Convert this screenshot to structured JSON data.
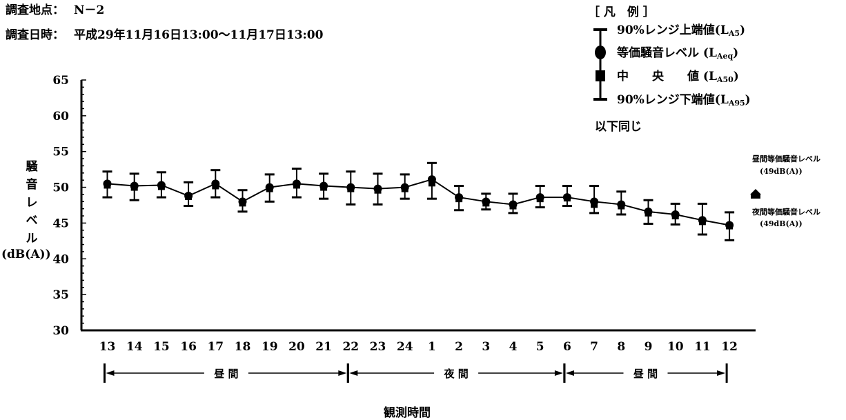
{
  "header": {
    "location_label": "調査地点：",
    "location_value": "N－2",
    "datetime_label": "調査日時：",
    "datetime_value": "平成29年11月16日13:00～11月17日13:00"
  },
  "legend": {
    "title": "［ 凡　例 ］",
    "items": [
      {
        "symbol": "cap",
        "label": "90%レンジ上端値(L",
        "sub": "A5",
        "tail": ")"
      },
      {
        "symbol": "circle",
        "label": "等価騒音レベル (L",
        "sub": "Aeq",
        "tail": ")"
      },
      {
        "symbol": "square",
        "label": "中　　央　　値 (L",
        "sub": "A50",
        "tail": ")"
      },
      {
        "symbol": "cap",
        "label": "90%レンジ下端値(L",
        "sub": "A95",
        "tail": ")"
      }
    ],
    "note": "以下同じ"
  },
  "chart_data": {
    "type": "line",
    "ylabel_chars": [
      "騒",
      "音",
      "レ",
      "ベ",
      "ル"
    ],
    "ylabel_unit": "(dB(A))",
    "xlabel": "観測時間",
    "ylim": [
      30,
      65
    ],
    "yticks": [
      30,
      35,
      40,
      45,
      50,
      55,
      60,
      65
    ],
    "categories": [
      "13",
      "14",
      "15",
      "16",
      "17",
      "18",
      "19",
      "20",
      "21",
      "22",
      "23",
      "24",
      "1",
      "2",
      "3",
      "4",
      "5",
      "6",
      "7",
      "8",
      "9",
      "10",
      "11",
      "12"
    ],
    "series": [
      {
        "name": "LAeq",
        "values": [
          50.5,
          50.2,
          50.3,
          48.8,
          50.5,
          48.0,
          50.0,
          50.5,
          50.2,
          50.0,
          49.8,
          50.0,
          51.1,
          48.6,
          48.0,
          47.6,
          48.6,
          48.6,
          48.0,
          47.6,
          46.6,
          46.2,
          45.4,
          44.7
        ]
      },
      {
        "name": "LA50",
        "values": [
          50.3,
          50.0,
          50.1,
          48.7,
          50.2,
          47.8,
          49.8,
          50.3,
          50.0,
          49.8,
          49.6,
          49.8,
          50.6,
          48.4,
          47.8,
          47.4,
          48.4,
          48.5,
          47.6,
          47.4,
          46.4,
          46.0,
          45.2,
          44.6
        ]
      },
      {
        "name": "LA5",
        "values": [
          52.2,
          51.9,
          52.1,
          50.7,
          52.4,
          49.6,
          51.8,
          52.6,
          51.9,
          52.2,
          51.9,
          51.8,
          53.4,
          50.2,
          49.1,
          49.1,
          50.2,
          50.2,
          50.2,
          49.4,
          48.2,
          47.7,
          47.7,
          46.5
        ]
      },
      {
        "name": "LA95",
        "values": [
          48.6,
          48.2,
          48.6,
          47.4,
          48.6,
          46.6,
          48.0,
          48.6,
          48.4,
          47.6,
          47.6,
          48.4,
          48.4,
          46.8,
          46.9,
          46.4,
          47.2,
          47.4,
          46.4,
          46.2,
          44.9,
          44.8,
          43.4,
          42.6
        ]
      }
    ],
    "periods": [
      {
        "label": "昼 間",
        "from": "13",
        "to": "22"
      },
      {
        "label": "夜 間",
        "from": "22",
        "to": "6"
      },
      {
        "label": "昼 間",
        "from": "6",
        "to": "12"
      }
    ],
    "annotations": {
      "day_text": "昼間等価騒音レベル",
      "day_value": "(49dB(A))",
      "night_text": "夜間等価騒音レベル",
      "night_value": "(49dB(A))",
      "day_level": 49,
      "night_level": 49
    }
  }
}
